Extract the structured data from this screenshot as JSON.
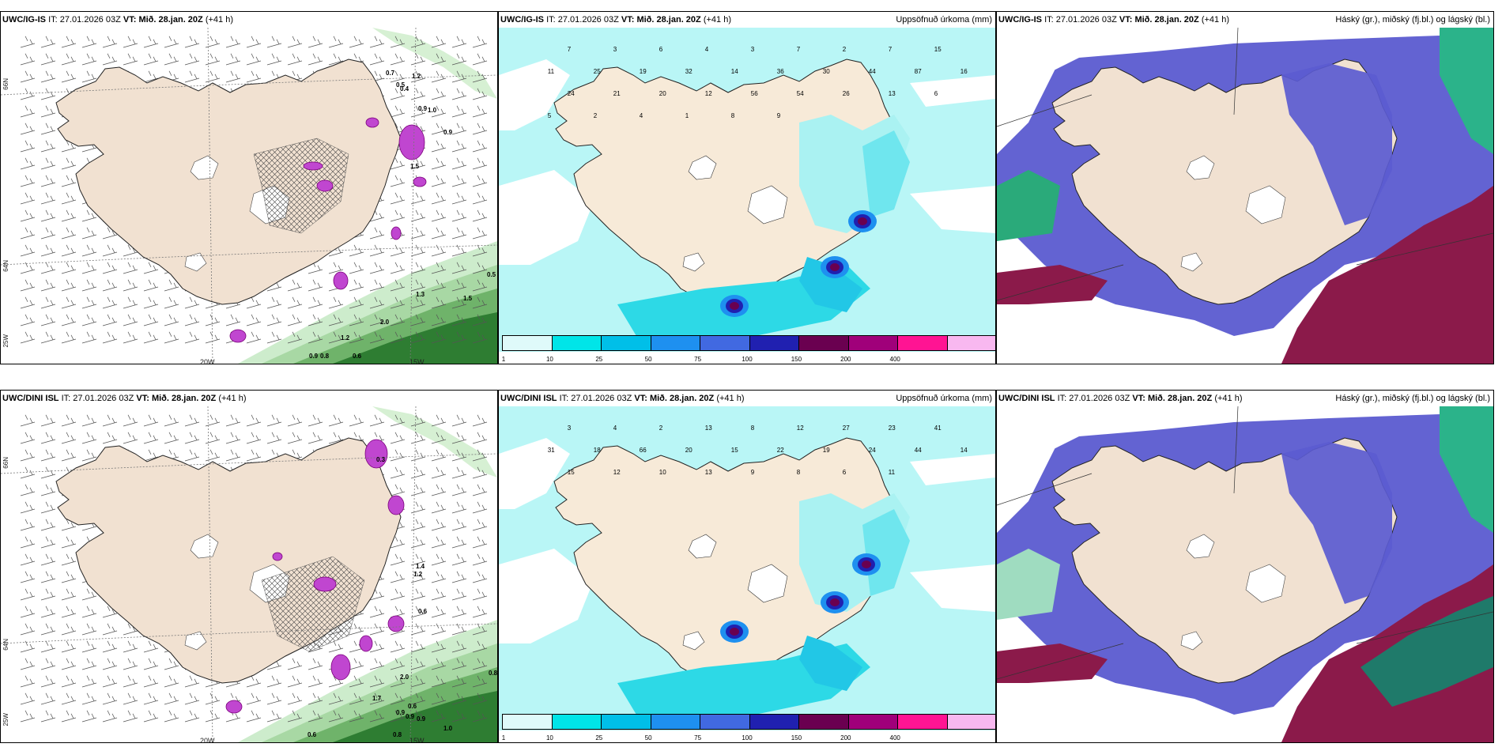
{
  "panels": [
    {
      "model": "UWC/IG-IS",
      "it_label": "IT:",
      "it_value": "27.01.2026 03Z",
      "vt_label": "VT:",
      "vt_value": "Mið. 28.jan. 20Z",
      "lead": "(+41 h)",
      "title_right": "",
      "type": "wind"
    },
    {
      "model": "UWC/IG-IS",
      "it_label": "IT:",
      "it_value": "27.01.2026 03Z",
      "vt_label": "VT:",
      "vt_value": "Mið. 28.jan. 20Z",
      "lead": "(+41 h)",
      "title_right": "Uppsöfnuð úrkoma (mm)",
      "type": "precip"
    },
    {
      "model": "UWC/IG-IS",
      "it_label": "IT:",
      "it_value": "27.01.2026 03Z",
      "vt_label": "VT:",
      "vt_value": "Mið. 28.jan. 20Z",
      "lead": "(+41 h)",
      "title_right": "Háský (gr.), miðský (fj.bl.) og lágský (bl.)",
      "type": "cloud"
    },
    {
      "model": "UWC/DINI ISL",
      "it_label": "IT:",
      "it_value": "27.01.2026 03Z",
      "vt_label": "VT:",
      "vt_value": "Mið. 28.jan. 20Z",
      "lead": "(+41 h)",
      "title_right": "",
      "type": "wind"
    },
    {
      "model": "UWC/DINI ISL",
      "it_label": "IT:",
      "it_value": "27.01.2026 03Z",
      "vt_label": "VT:",
      "vt_value": "Mið. 28.jan. 20Z",
      "lead": "(+41 h)",
      "title_right": "Uppsöfnuð úrkoma (mm)",
      "type": "precip"
    },
    {
      "model": "UWC/DINI ISL",
      "it_label": "IT:",
      "it_value": "27.01.2026 03Z",
      "vt_label": "VT:",
      "vt_value": "Mið. 28.jan. 20Z",
      "lead": "(+41 h)",
      "title_right": "Háský (gr.), miðský (fj.bl.) og lágský (bl.)",
      "type": "cloud"
    }
  ],
  "axis_labels": {
    "lon": [
      "20W",
      "15W"
    ],
    "lat": [
      "66N",
      "64N",
      "25W"
    ]
  },
  "colorbar": {
    "ticks": [
      "1",
      "10",
      "25",
      "50",
      "75",
      "100",
      "150",
      "200",
      "400"
    ],
    "colors": [
      "#dffafa",
      "#00e5e8",
      "#00bfe8",
      "#1e90f0",
      "#4169e1",
      "#2020b0",
      "#6a0050",
      "#a0007a",
      "#ff1493",
      "#f8b8f0"
    ]
  },
  "wind_top_values": [
    "0.7",
    "1.2",
    "0.5",
    "0.4",
    "0.9",
    "1.0",
    "0.9",
    "1.5",
    "0.6",
    "1.2",
    "2.0",
    "0.8",
    "0.9",
    "1.3",
    "0.5",
    "1.5"
  ],
  "wind_bottom_values": [
    "0.3",
    "1.4",
    "1.2",
    "0.6",
    "2.0",
    "1.7",
    "0.6",
    "0.9",
    "0.9",
    "0.8",
    "1.0",
    "0.8",
    "0.6",
    "0.9"
  ],
  "precip_top_values": [
    "7",
    "3",
    "6",
    "4",
    "3",
    "7",
    "2",
    "7",
    "15",
    "11",
    "25",
    "19",
    "32",
    "14",
    "36",
    "30",
    "44",
    "87",
    "16",
    "24",
    "21",
    "20",
    "12",
    "56",
    "54",
    "26",
    "13",
    "6",
    "5",
    "2",
    "4",
    "1",
    "8",
    "9"
  ],
  "precip_bottom_values": [
    "3",
    "4",
    "2",
    "13",
    "8",
    "12",
    "27",
    "23",
    "41",
    "31",
    "18",
    "66",
    "20",
    "15",
    "22",
    "19",
    "24",
    "44",
    "14",
    "15",
    "12",
    "10",
    "13",
    "9",
    "8",
    "6",
    "11"
  ]
}
